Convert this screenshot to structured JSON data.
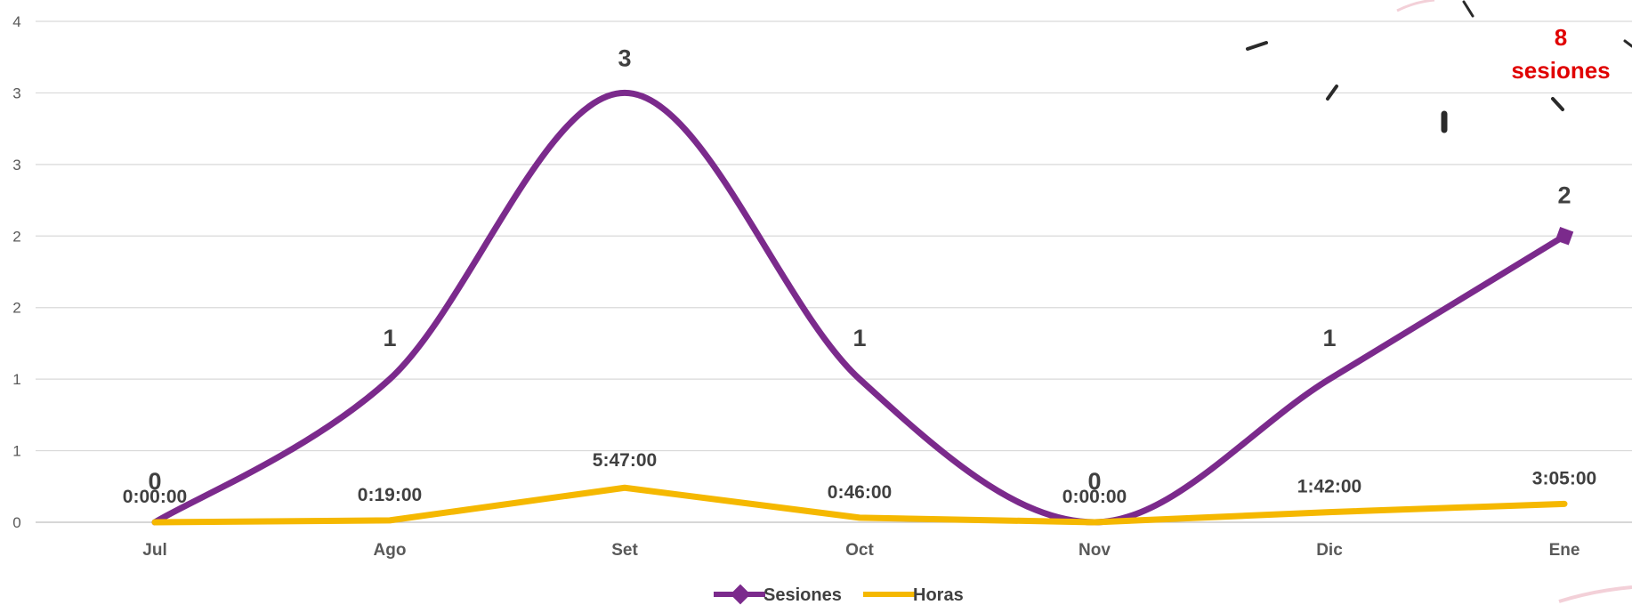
{
  "chart_data": {
    "type": "line",
    "categories": [
      "Jul",
      "Ago",
      "Set",
      "Oct",
      "Nov",
      "Dic",
      "Ene"
    ],
    "y_tick_labels": [
      "0",
      "1",
      "1",
      "2",
      "2",
      "3",
      "3",
      "4"
    ],
    "ylim": [
      0,
      3.5
    ],
    "grid": true,
    "legend_position": "bottom",
    "series": [
      {
        "name": "Sesiones",
        "values": [
          0,
          1,
          3,
          1,
          0,
          1,
          2
        ],
        "labels": [
          "0",
          "1",
          "3",
          "1",
          "0",
          "1",
          "2"
        ],
        "color": "#7b2a8c",
        "smooth": true,
        "marker": "diamond"
      },
      {
        "name": "Horas",
        "values": [
          0,
          0.0132,
          0.241,
          0.0319,
          0,
          0.0708,
          0.1285
        ],
        "labels": [
          "0:00:00",
          "0:19:00",
          "5:47:00",
          "0:46:00",
          "0:00:00",
          "1:42:00",
          "3:05:00"
        ],
        "color": "#f5b800",
        "smooth": false,
        "marker": "line"
      }
    ],
    "annotation": {
      "number": "8",
      "word": "sesiones",
      "color": "#e00000"
    }
  }
}
